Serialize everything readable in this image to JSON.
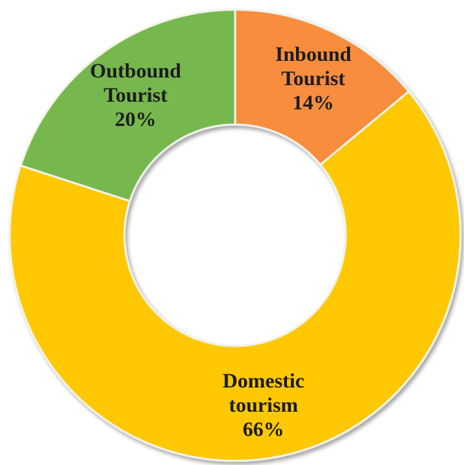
{
  "chart_data": {
    "type": "pie",
    "variant": "donut",
    "title": "",
    "legend": "none",
    "start": "top",
    "direction": "clockwise",
    "slices": [
      {
        "key": "inbound",
        "label_lines": [
          "Inbound",
          "Tourist",
          "14%"
        ],
        "value": 14,
        "color": "#f88d3c"
      },
      {
        "key": "domestic",
        "label_lines": [
          "Domestic",
          "tourism",
          "66%"
        ],
        "value": 66,
        "color": "#ffc800"
      },
      {
        "key": "outbound",
        "label_lines": [
          "Outbound",
          "Tourist",
          "20%"
        ],
        "value": 20,
        "color": "#76b84d"
      }
    ]
  }
}
